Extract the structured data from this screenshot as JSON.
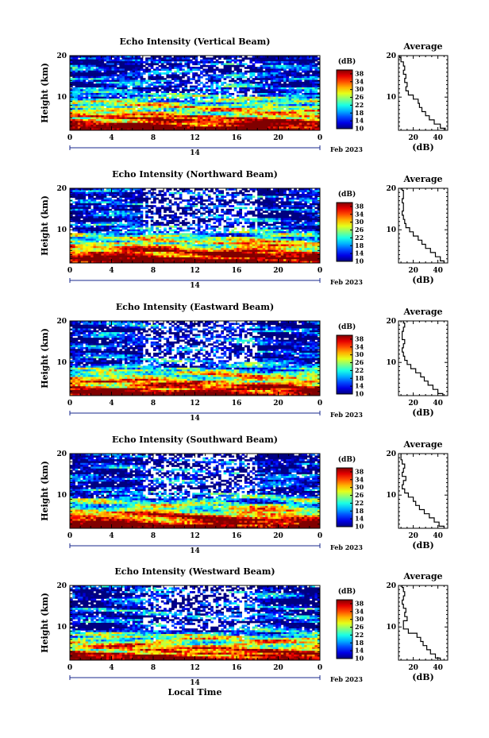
{
  "chart_data": [
    {
      "type": "heatmap",
      "title": "Echo Intensity (Vertical Beam)",
      "ylabel": "Height (km)",
      "y_ticks": [
        "20",
        "10"
      ],
      "x_ticks": [
        "0",
        "4",
        "8",
        "12",
        "16",
        "20",
        "0"
      ],
      "x_day_label": "14",
      "x_month_label": "Feb 2023",
      "colorbar_label": "(dB)",
      "colorbar_ticks": [
        "38",
        "34",
        "30",
        "26",
        "22",
        "18",
        "14",
        "10"
      ],
      "colorbar_range": [
        10,
        40
      ],
      "x_range_hours": [
        0,
        24
      ],
      "y_range_km": [
        2,
        20
      ],
      "profile": {
        "title": "Average",
        "xlabel": "(dB)",
        "x_ticks": [
          "20",
          "40"
        ],
        "y_ticks": [
          "20",
          "10"
        ],
        "x_range": [
          8,
          48
        ],
        "heights_km": [
          2,
          3,
          4,
          5,
          6,
          7,
          8,
          9,
          10,
          11,
          12,
          13,
          14,
          15,
          16,
          17,
          18,
          19,
          20
        ],
        "values_db": [
          46,
          42,
          37,
          33,
          30,
          27,
          25,
          24,
          20,
          16,
          14,
          15,
          13,
          14,
          12,
          13,
          12,
          10,
          9
        ]
      }
    },
    {
      "type": "heatmap",
      "title": "Echo Intensity (Northward Beam)",
      "ylabel": "Height (km)",
      "y_ticks": [
        "20",
        "10"
      ],
      "x_ticks": [
        "0",
        "4",
        "8",
        "12",
        "16",
        "20",
        "0"
      ],
      "x_day_label": "14",
      "x_month_label": "Feb 2023",
      "colorbar_label": "(dB)",
      "colorbar_ticks": [
        "38",
        "34",
        "30",
        "26",
        "22",
        "18",
        "14",
        "10"
      ],
      "colorbar_range": [
        10,
        40
      ],
      "x_range_hours": [
        0,
        24
      ],
      "y_range_km": [
        2,
        20
      ],
      "profile": {
        "title": "Average",
        "xlabel": "(dB)",
        "x_ticks": [
          "20",
          "40"
        ],
        "y_ticks": [
          "20",
          "10"
        ],
        "x_range": [
          8,
          48
        ],
        "heights_km": [
          2,
          3,
          4,
          5,
          6,
          7,
          8,
          9,
          10,
          11,
          12,
          13,
          14,
          15,
          16,
          17,
          18,
          19,
          20
        ],
        "values_db": [
          45,
          42,
          38,
          34,
          30,
          27,
          24,
          20,
          17,
          14,
          13,
          12,
          11,
          12,
          12,
          11,
          12,
          12,
          11
        ]
      }
    },
    {
      "type": "heatmap",
      "title": "Echo Intensity (Eastward Beam)",
      "ylabel": "Height (km)",
      "y_ticks": [
        "20",
        "10"
      ],
      "x_ticks": [
        "0",
        "4",
        "8",
        "12",
        "16",
        "20",
        "0"
      ],
      "x_day_label": "14",
      "x_month_label": "Feb 2023",
      "colorbar_label": "(dB)",
      "colorbar_ticks": [
        "38",
        "34",
        "30",
        "26",
        "22",
        "18",
        "14",
        "10"
      ],
      "colorbar_range": [
        10,
        40
      ],
      "x_range_hours": [
        0,
        24
      ],
      "y_range_km": [
        2,
        20
      ],
      "profile": {
        "title": "Average",
        "xlabel": "(dB)",
        "x_ticks": [
          "20",
          "40"
        ],
        "y_ticks": [
          "20",
          "10"
        ],
        "x_range": [
          8,
          48
        ],
        "heights_km": [
          2,
          3,
          4,
          5,
          6,
          7,
          8,
          9,
          10,
          11,
          12,
          13,
          14,
          15,
          16,
          17,
          18,
          19,
          20
        ],
        "values_db": [
          44,
          40,
          36,
          32,
          29,
          26,
          22,
          18,
          15,
          13,
          12,
          11,
          12,
          13,
          11,
          11,
          12,
          13,
          12
        ]
      }
    },
    {
      "type": "heatmap",
      "title": "Echo Intensity (Southward Beam)",
      "ylabel": "Height (km)",
      "y_ticks": [
        "20",
        "10"
      ],
      "x_ticks": [
        "0",
        "4",
        "8",
        "12",
        "16",
        "20",
        "0"
      ],
      "x_day_label": "14",
      "x_month_label": "Feb 2023",
      "colorbar_label": "(dB)",
      "colorbar_ticks": [
        "38",
        "34",
        "30",
        "26",
        "22",
        "18",
        "14",
        "10"
      ],
      "colorbar_range": [
        10,
        40
      ],
      "x_range_hours": [
        0,
        24
      ],
      "y_range_km": [
        2,
        20
      ],
      "profile": {
        "title": "Average",
        "xlabel": "(dB)",
        "x_ticks": [
          "20",
          "40"
        ],
        "y_ticks": [
          "20",
          "10"
        ],
        "x_range": [
          8,
          48
        ],
        "heights_km": [
          2,
          3,
          4,
          5,
          6,
          7,
          8,
          9,
          10,
          11,
          12,
          13,
          14,
          15,
          16,
          17,
          18,
          19,
          20
        ],
        "values_db": [
          45,
          41,
          37,
          33,
          29,
          25,
          22,
          20,
          16,
          13,
          11,
          12,
          14,
          11,
          12,
          13,
          11,
          10,
          10
        ]
      }
    },
    {
      "type": "heatmap",
      "title": "Echo Intensity (Westward Beam)",
      "ylabel": "Height (km)",
      "y_ticks": [
        "20",
        "10"
      ],
      "x_ticks": [
        "0",
        "4",
        "8",
        "12",
        "16",
        "20",
        "0"
      ],
      "x_day_label": "14",
      "x_month_label": "Feb 2023",
      "xlabel": "Local Time",
      "colorbar_label": "(dB)",
      "colorbar_ticks": [
        "38",
        "34",
        "30",
        "26",
        "22",
        "18",
        "14",
        "10"
      ],
      "colorbar_range": [
        10,
        40
      ],
      "x_range_hours": [
        0,
        24
      ],
      "y_range_km": [
        2,
        20
      ],
      "profile": {
        "title": "Average",
        "xlabel": "(dB)",
        "x_ticks": [
          "20",
          "40"
        ],
        "y_ticks": [
          "20",
          "10"
        ],
        "x_range": [
          8,
          48
        ],
        "heights_km": [
          2,
          3,
          4,
          5,
          6,
          7,
          8,
          9,
          10,
          11,
          12,
          13,
          14,
          15,
          16,
          17,
          18,
          19,
          20
        ],
        "values_db": [
          42,
          38,
          34,
          31,
          28,
          26,
          23,
          16,
          12,
          12,
          15,
          13,
          14,
          12,
          11,
          12,
          13,
          12,
          11
        ]
      }
    }
  ]
}
